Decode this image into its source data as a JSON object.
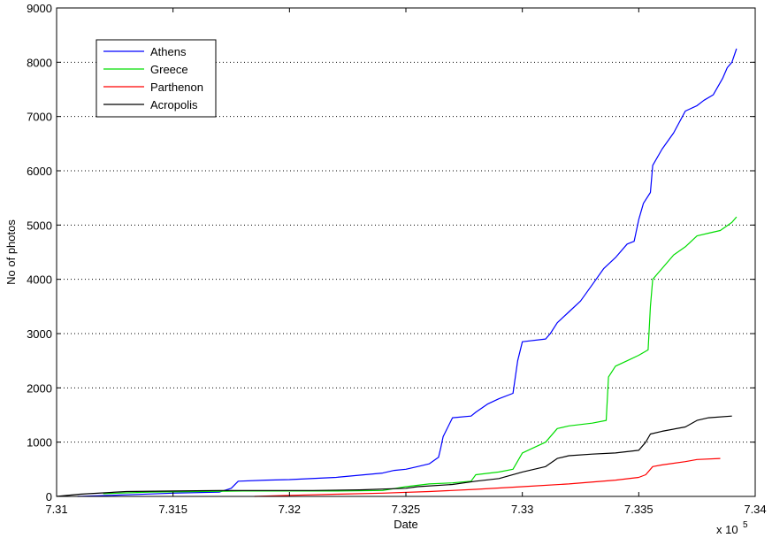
{
  "chart_data": {
    "type": "line",
    "xlabel": "Date",
    "ylabel": "No of photos",
    "x_multiplier_label": "x 10",
    "x_multiplier_exponent": "5",
    "xlim": [
      731000,
      734000
    ],
    "ylim": [
      0,
      9000
    ],
    "x_ticks": [
      731000,
      731500,
      732000,
      732500,
      733000,
      733500,
      734000
    ],
    "x_tick_labels": [
      "7.31",
      "7.315",
      "7.32",
      "7.325",
      "7.33",
      "7.335",
      "7.34"
    ],
    "y_ticks": [
      0,
      1000,
      2000,
      3000,
      4000,
      5000,
      6000,
      7000,
      8000,
      9000
    ],
    "y_tick_labels": [
      "0",
      "1000",
      "2000",
      "3000",
      "4000",
      "5000",
      "6000",
      "7000",
      "8000",
      "9000"
    ],
    "grid": "horizontal-dotted",
    "legend_position": "top-left",
    "series": [
      {
        "name": "Athens",
        "color": "#0000ff",
        "x": [
          731090,
          731300,
          731500,
          731700,
          731750,
          731780,
          731900,
          732000,
          732200,
          732400,
          732450,
          732500,
          732550,
          732600,
          732640,
          732650,
          732660,
          732700,
          732780,
          732800,
          732850,
          732900,
          732960,
          732980,
          733000,
          733100,
          733120,
          733150,
          733200,
          733250,
          733300,
          733350,
          733400,
          733450,
          733480,
          733500,
          733520,
          733550,
          733560,
          733600,
          733650,
          733700,
          733750,
          733780,
          733820,
          733860,
          733880,
          733900,
          733920
        ],
        "y": [
          0,
          30,
          60,
          80,
          150,
          280,
          300,
          310,
          350,
          430,
          480,
          500,
          550,
          600,
          720,
          900,
          1100,
          1450,
          1480,
          1550,
          1700,
          1800,
          1900,
          2500,
          2850,
          2900,
          3000,
          3200,
          3400,
          3600,
          3900,
          4200,
          4400,
          4650,
          4700,
          5100,
          5400,
          5600,
          6100,
          6400,
          6700,
          7100,
          7200,
          7300,
          7400,
          7700,
          7900,
          8000,
          8250
        ]
      },
      {
        "name": "Greece",
        "color": "#00dd00",
        "x": [
          731200,
          731400,
          731600,
          731800,
          732000,
          732200,
          732400,
          732500,
          732600,
          732700,
          732780,
          732800,
          732900,
          732960,
          733000,
          733050,
          733100,
          733150,
          733200,
          733300,
          733360,
          733370,
          733400,
          733450,
          733500,
          733540,
          733550,
          733560,
          733580,
          733600,
          733650,
          733700,
          733750,
          733800,
          733850,
          733900,
          733920
        ],
        "y": [
          50,
          80,
          90,
          100,
          100,
          100,
          110,
          180,
          230,
          250,
          280,
          400,
          450,
          500,
          800,
          900,
          1000,
          1250,
          1300,
          1350,
          1400,
          2200,
          2400,
          2500,
          2600,
          2700,
          3500,
          4000,
          4100,
          4200,
          4450,
          4600,
          4800,
          4850,
          4900,
          5050,
          5150
        ]
      },
      {
        "name": "Parthenon",
        "color": "#ff0000",
        "x": [
          731850,
          732000,
          732200,
          732400,
          732600,
          732800,
          733000,
          733200,
          733400,
          733500,
          733530,
          733560,
          733600,
          733700,
          733750,
          733850
        ],
        "y": [
          0,
          20,
          40,
          60,
          90,
          130,
          180,
          230,
          300,
          350,
          400,
          550,
          580,
          640,
          680,
          700
        ]
      },
      {
        "name": "Acropolis",
        "color": "#000000",
        "x": [
          731000,
          731100,
          731300,
          731500,
          731700,
          731900,
          732100,
          732300,
          732500,
          732550,
          732700,
          732800,
          732900,
          733000,
          733100,
          733150,
          733200,
          733300,
          733400,
          733500,
          733530,
          733550,
          733600,
          733700,
          733750,
          733800,
          733900
        ],
        "y": [
          0,
          40,
          90,
          100,
          110,
          110,
          110,
          120,
          150,
          180,
          220,
          280,
          330,
          450,
          550,
          700,
          750,
          780,
          800,
          850,
          1000,
          1150,
          1200,
          1280,
          1400,
          1450,
          1480
        ]
      }
    ]
  }
}
